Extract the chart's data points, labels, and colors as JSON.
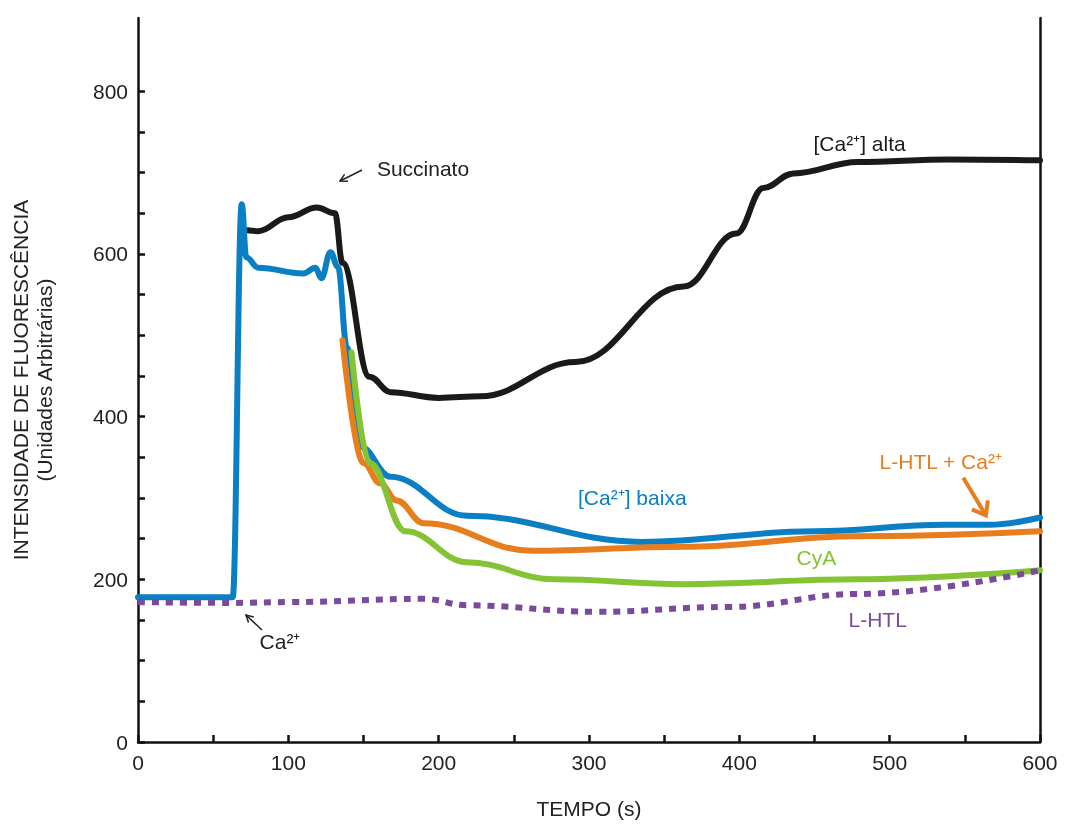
{
  "chart_data": {
    "type": "line",
    "xlabel": "TEMPO (s)",
    "ylabel": "INTENSIDADE DE FLUORESCÊNCIA\n(Unidades Arbitrárias)",
    "xlim": [
      0,
      600
    ],
    "ylim": [
      0,
      890
    ],
    "xticks": [
      0,
      {
        "value": 50,
        "label": null
      },
      100,
      {
        "value": 150,
        "label": null
      },
      200,
      {
        "value": 250,
        "label": null
      },
      300,
      {
        "value": 350,
        "label": null
      },
      400,
      {
        "value": 450,
        "label": null
      },
      500,
      {
        "value": 550,
        "label": null
      },
      600
    ],
    "yticks": [
      0,
      {
        "value": 50,
        "label": null
      },
      {
        "value": 100,
        "label": null
      },
      {
        "value": 150,
        "label": null
      },
      200,
      {
        "value": 250,
        "label": null
      },
      {
        "value": 300,
        "label": null
      },
      {
        "value": 350,
        "label": null
      },
      400,
      {
        "value": 450,
        "label": null
      },
      {
        "value": 500,
        "label": null
      },
      {
        "value": 550,
        "label": null
      },
      600,
      {
        "value": 650,
        "label": null
      },
      {
        "value": 700,
        "label": null
      },
      {
        "value": 750,
        "label": null
      },
      800
    ],
    "grid": false,
    "legend": false,
    "marker": "none",
    "annotations": [
      "Succinato",
      "Ca²⁺"
    ],
    "series": [
      {
        "name": "[Ca²⁺] alta",
        "color": "#1a1a1a",
        "line_style": "solid",
        "x": [
          73,
          80,
          100,
          119,
          131,
          136,
          154,
          168,
          200,
          228,
          291,
          363,
          398,
          416,
          436,
          479,
          540,
          600
        ],
        "values": [
          629,
          628,
          645,
          657,
          650,
          589,
          449,
          430,
          423,
          425,
          467,
          560,
          625,
          681,
          699,
          713,
          716,
          715
        ]
      },
      {
        "name": "[Ca²⁺] baixa",
        "color": "#0a7fc4",
        "line_style": "solid",
        "x": [
          0,
          63,
          69,
          72,
          80,
          110,
          118,
          122,
          128,
          133,
          139,
          148,
          168,
          219,
          335,
          450,
          537,
          566,
          600
        ],
        "values": [
          178,
          178,
          661,
          596,
          583,
          576,
          583,
          570,
          602,
          584,
          485,
          363,
          326,
          278,
          246,
          259,
          267,
          267,
          276
        ]
      },
      {
        "name": "L-HTL + Ca²⁺",
        "color": "#e87d1e",
        "line_style": "solid",
        "x": [
          136,
          150,
          161,
          172,
          190,
          262,
          363,
          479,
          600
        ],
        "values": [
          494,
          343,
          318,
          297,
          269,
          235,
          240,
          253,
          259
        ]
      },
      {
        "name": "CyA",
        "color": "#84c333",
        "line_style": "solid",
        "x": [
          142,
          154,
          178,
          219,
          277,
          363,
          479,
          600
        ],
        "values": [
          479,
          343,
          259,
          221,
          200,
          194,
          200,
          211
        ]
      },
      {
        "name": "L-HTL",
        "color": "#7a4a9e",
        "line_style": "dotted",
        "x": [
          0,
          63,
          100,
          190,
          219,
          305,
          393,
          479,
          600
        ],
        "values": [
          172,
          171,
          172,
          176,
          168,
          160,
          166,
          182,
          211
        ]
      }
    ]
  }
}
